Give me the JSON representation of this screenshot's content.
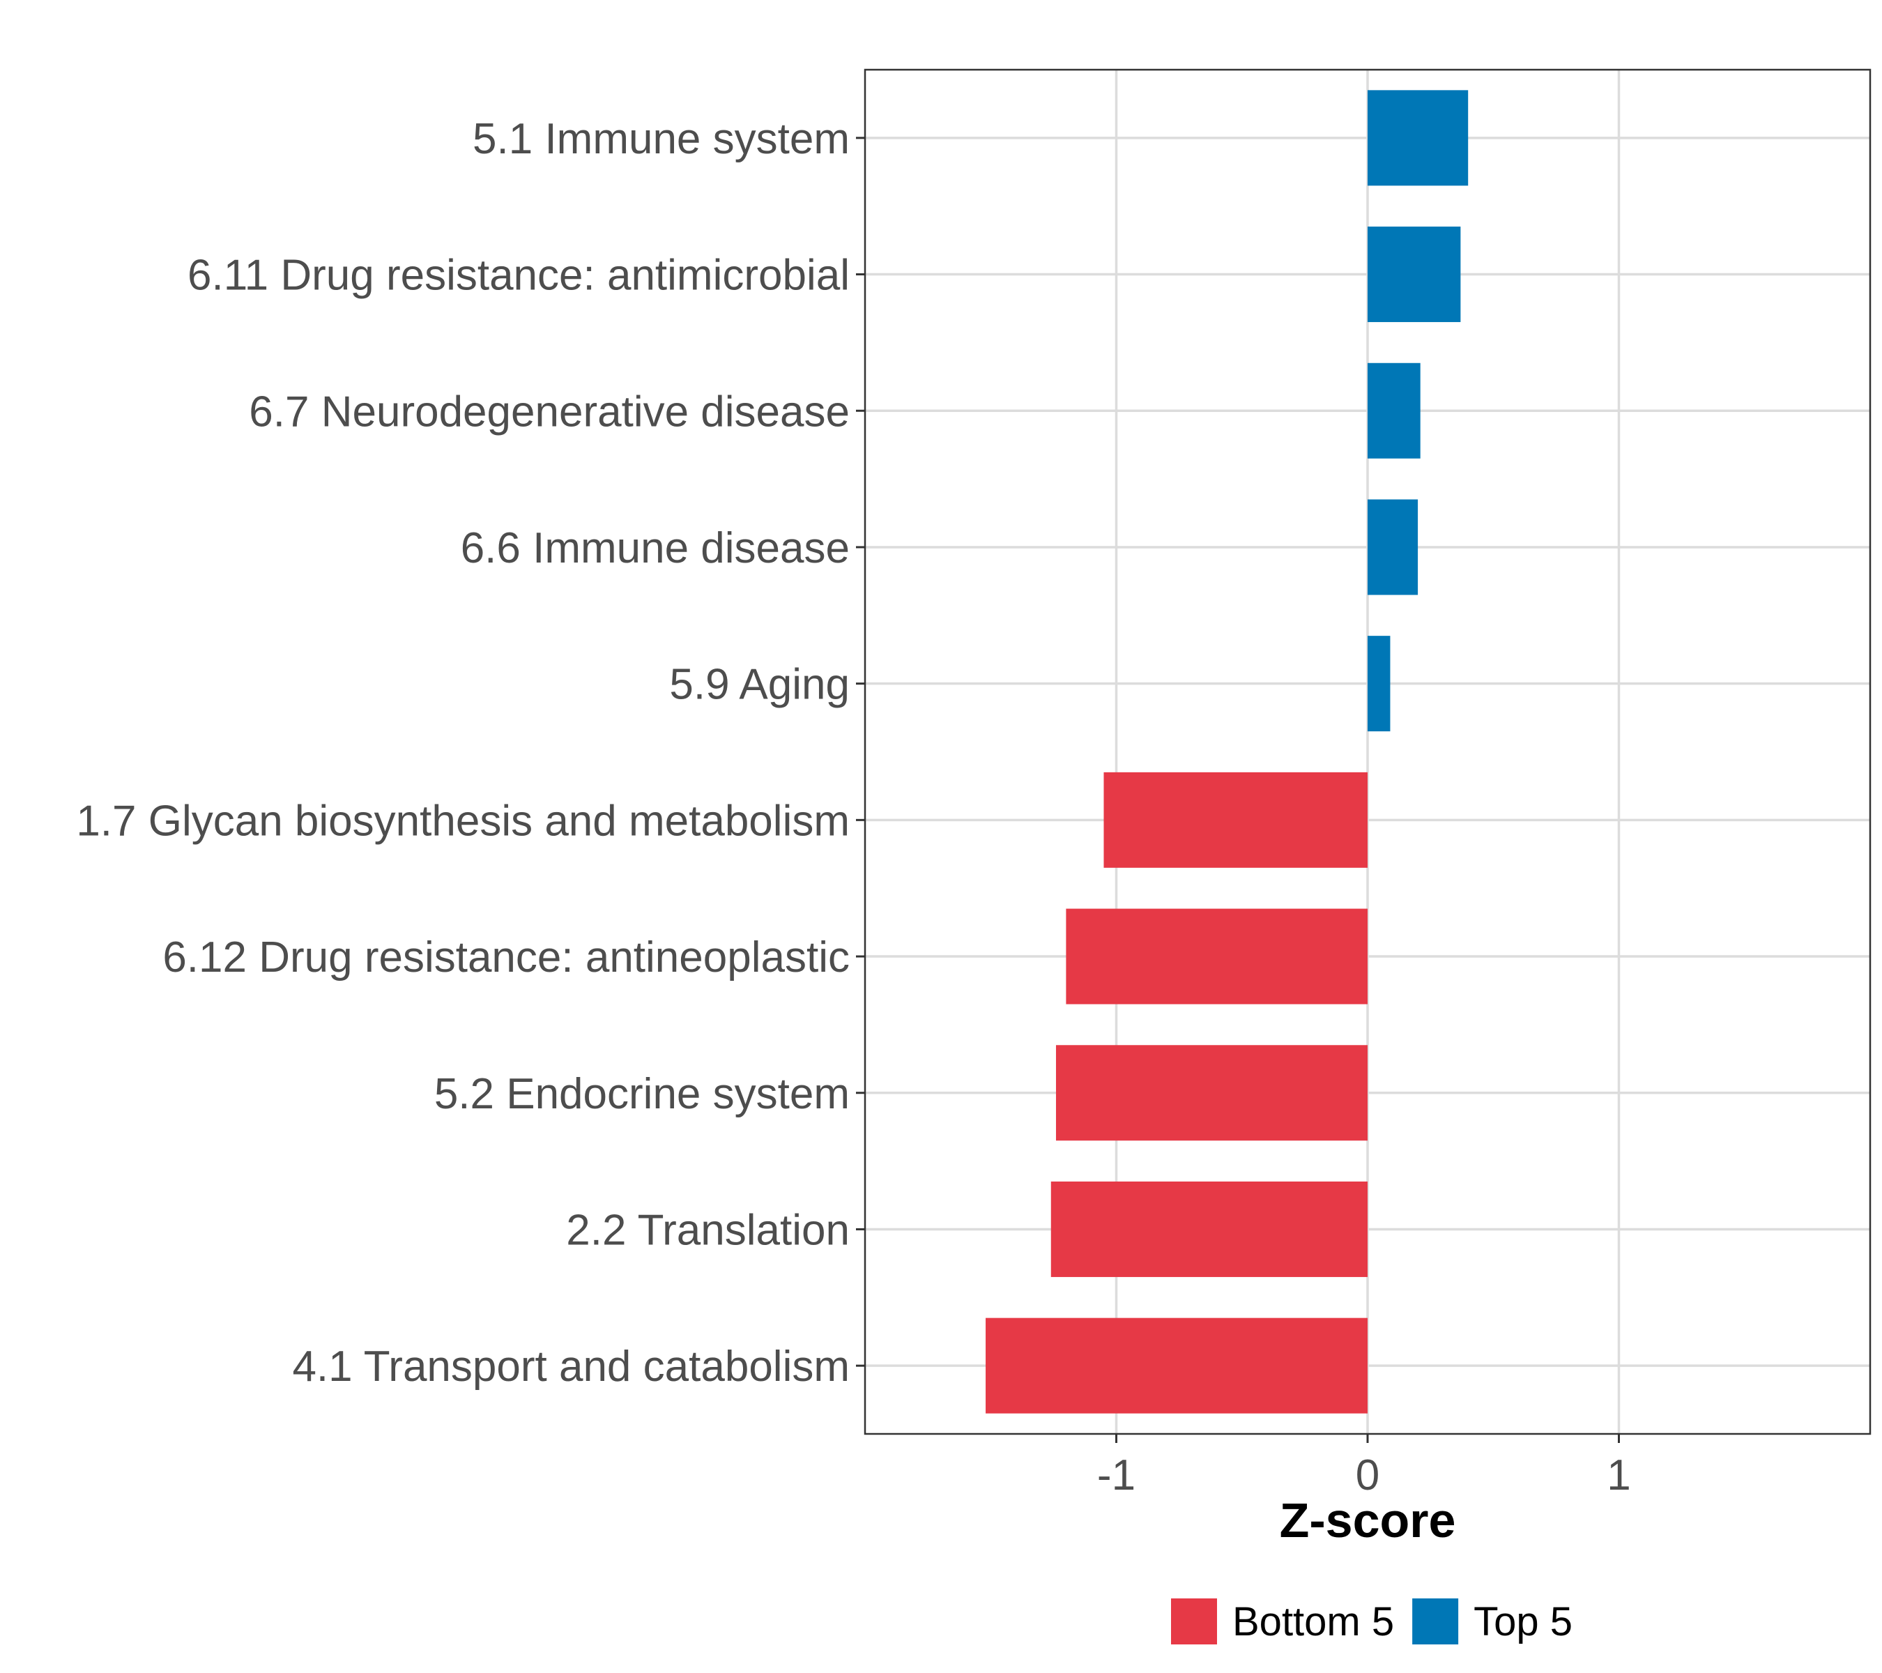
{
  "chart_data": {
    "type": "bar",
    "orientation": "horizontal",
    "categories": [
      "5.1 Immune system",
      "6.11 Drug resistance: antimicrobial",
      "6.7 Neurodegenerative disease",
      "6.6 Immune disease",
      "5.9 Aging",
      "1.7 Glycan biosynthesis and metabolism",
      "6.12 Drug resistance: antineoplastic",
      "5.2 Endocrine system",
      "2.2 Translation",
      "4.1 Transport and catabolism"
    ],
    "values": [
      0.4,
      0.37,
      0.21,
      0.2,
      0.09,
      -1.05,
      -1.2,
      -1.24,
      -1.26,
      -1.52
    ],
    "groups": [
      "Top 5",
      "Top 5",
      "Top 5",
      "Top 5",
      "Top 5",
      "Bottom 5",
      "Bottom 5",
      "Bottom 5",
      "Bottom 5",
      "Bottom 5"
    ],
    "xlabel": "Z-score",
    "ylabel": "",
    "xlim": [
      -2,
      2
    ],
    "xticks": [
      -1,
      0,
      1
    ],
    "xtick_labels": [
      "-1",
      "0",
      "1"
    ],
    "grid": true,
    "legend": {
      "position": "bottom",
      "entries": [
        {
          "label": "Bottom 5",
          "color": "#E63946"
        },
        {
          "label": "Top 5",
          "color": "#0077B6"
        }
      ]
    },
    "colors": {
      "Bottom 5": "#E63946",
      "Top 5": "#0077B6"
    }
  }
}
